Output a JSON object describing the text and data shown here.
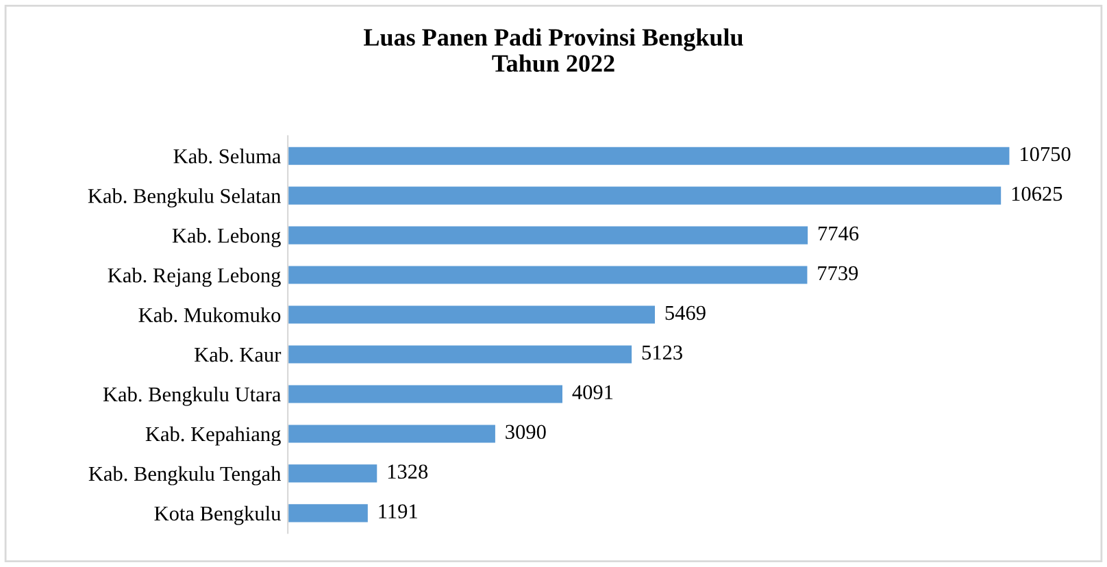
{
  "chart_data": {
    "type": "bar",
    "orientation": "horizontal",
    "title": "Luas Panen Padi Provinsi Bengkulu\nTahun 2022",
    "categories": [
      "Kab. Seluma",
      "Kab. Bengkulu Selatan",
      "Kab. Lebong",
      "Kab. Rejang Lebong",
      "Kab. Mukomuko",
      "Kab. Kaur",
      "Kab. Bengkulu Utara",
      "Kab. Kepahiang",
      "Kab. Bengkulu Tengah",
      "Kota Bengkulu"
    ],
    "values": [
      10750,
      10625,
      7746,
      7739,
      5469,
      5123,
      4091,
      3090,
      1328,
      1191
    ],
    "color": "#5b9bd5",
    "data_labels": true,
    "grid": false,
    "legend": false
  }
}
